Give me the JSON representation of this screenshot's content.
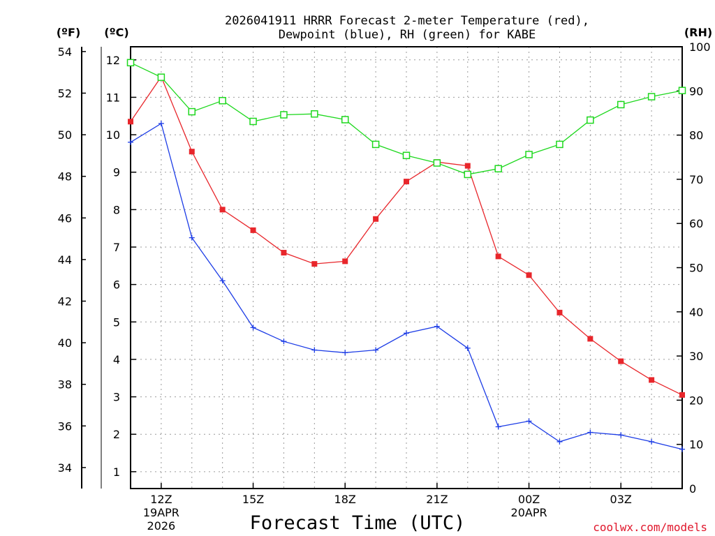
{
  "chart_data": {
    "type": "line",
    "title_line1": "2026041911 HRRR Forecast 2-meter Temperature (red),",
    "title_line2": "Dewpoint (blue), RH (green) for KABE",
    "xlabel": "Forecast Time (UTC)",
    "credit": "coolwx.com/models",
    "unit_labels": {
      "fahrenheit": "(ºF)",
      "celsius": "(ºC)",
      "rh": "(RH)"
    },
    "x_hours": [
      11,
      12,
      13,
      14,
      15,
      16,
      17,
      18,
      19,
      20,
      21,
      22,
      23,
      24,
      25,
      26,
      27,
      28,
      29
    ],
    "x_ticks": [
      {
        "hour": 12,
        "lines": [
          "12Z",
          "19APR",
          "2026"
        ]
      },
      {
        "hour": 15,
        "lines": [
          "15Z"
        ]
      },
      {
        "hour": 18,
        "lines": [
          "18Z"
        ]
      },
      {
        "hour": 21,
        "lines": [
          "21Z"
        ]
      },
      {
        "hour": 24,
        "lines": [
          "00Z",
          "20APR"
        ]
      },
      {
        "hour": 27,
        "lines": [
          "03Z"
        ]
      }
    ],
    "xlim": [
      11,
      29
    ],
    "ylim_celsius": [
      0.55,
      12.35
    ],
    "ylim_rh": [
      0,
      100
    ],
    "celsius_ticks": [
      1,
      2,
      3,
      4,
      5,
      6,
      7,
      8,
      9,
      10,
      11,
      12
    ],
    "fahrenheit_ticks": [
      34,
      36,
      38,
      40,
      42,
      44,
      46,
      48,
      50,
      52,
      54
    ],
    "rh_ticks": [
      0,
      10,
      20,
      30,
      40,
      50,
      60,
      70,
      80,
      90,
      100
    ],
    "series": [
      {
        "name": "2-meter Temperature",
        "axis": "celsius",
        "color": "#e8262b",
        "marker": "filled-square",
        "values": [
          10.35,
          11.55,
          9.55,
          8.0,
          7.45,
          6.85,
          6.55,
          6.62,
          7.75,
          8.75,
          9.27,
          9.17,
          6.75,
          6.25,
          5.25,
          4.55,
          3.95,
          3.45,
          3.05
        ]
      },
      {
        "name": "Dewpoint",
        "axis": "celsius",
        "color": "#1c3ce6",
        "marker": "plus",
        "values": [
          9.8,
          10.3,
          7.25,
          6.1,
          4.85,
          4.48,
          4.25,
          4.18,
          4.25,
          4.7,
          4.88,
          4.3,
          2.2,
          2.35,
          1.8,
          2.05,
          1.98,
          1.8,
          1.6
        ]
      },
      {
        "name": "RH",
        "axis": "rh",
        "color": "#1ed81e",
        "marker": "open-square",
        "values": [
          96.4,
          93.1,
          85.3,
          87.8,
          83.1,
          84.6,
          84.8,
          83.5,
          77.9,
          75.4,
          73.7,
          71.1,
          72.4,
          75.6,
          77.9,
          83.4,
          86.9,
          88.7,
          90.1
        ]
      }
    ]
  }
}
